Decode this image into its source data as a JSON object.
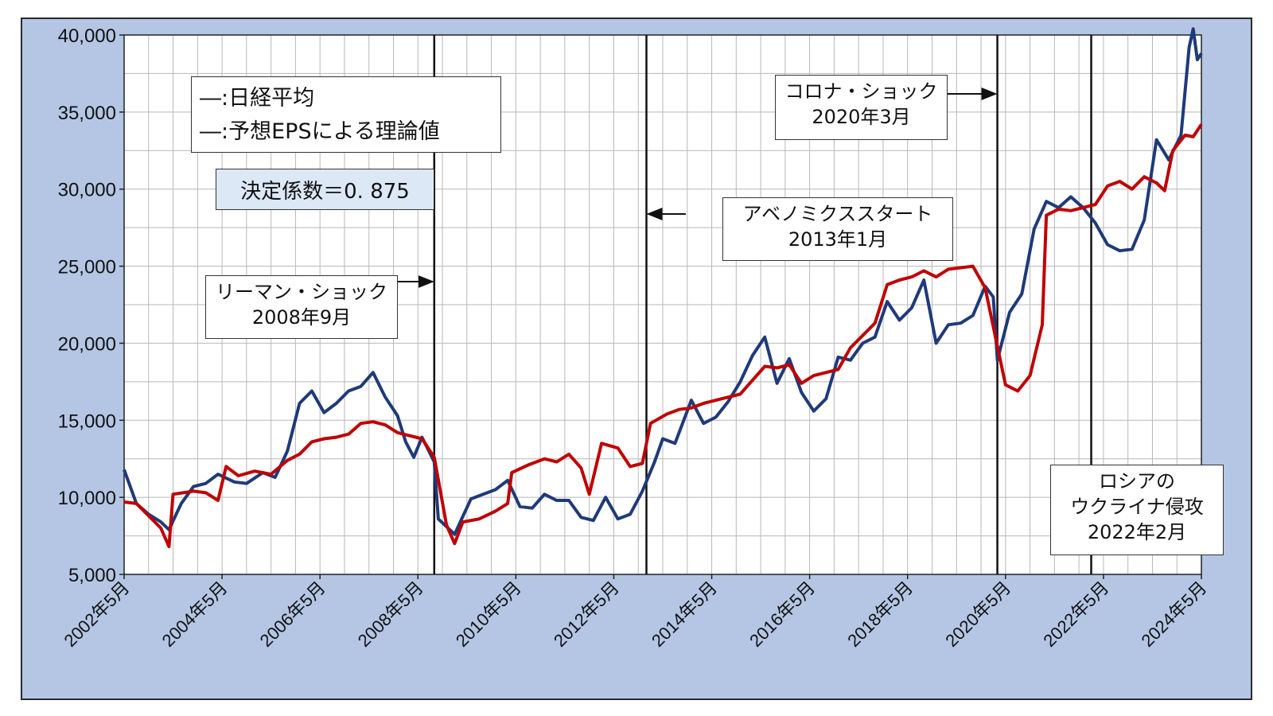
{
  "chart_data": {
    "type": "line",
    "title": "",
    "xlabel": "",
    "ylabel": "",
    "ylim": [
      5000,
      40000
    ],
    "y_ticks": [
      "5,000",
      "10,000",
      "15,000",
      "20,000",
      "25,000",
      "30,000",
      "35,000",
      "40,000"
    ],
    "x_ticks": [
      "2002年5月",
      "2004年5月",
      "2006年5月",
      "2008年5月",
      "2010年5月",
      "2012年5月",
      "2014年5月",
      "2016年5月",
      "2018年5月",
      "2020年5月",
      "2022年5月",
      "2024年5月"
    ],
    "xlim": [
      "2002-05",
      "2024-05"
    ],
    "grid": true,
    "legend": {
      "placement": "top-left",
      "entries": [
        {
          "label": "―:日経平均",
          "color": "#1f3a7a"
        },
        {
          "label": "―:予想EPSによる理論値",
          "color": "#c00000"
        }
      ]
    },
    "coefficient_label": "決定係数＝0. 875",
    "event_lines": [
      {
        "date": "2008-09",
        "label": "リーマン・ショック\n2008年9月"
      },
      {
        "date": "2013-01",
        "label": "アベノミクススタート\n2013年1月"
      },
      {
        "date": "2020-03",
        "label": "コロナ・ショック\n2020年3月"
      },
      {
        "date": "2022-02",
        "label": "ロシアの\nウクライナ侵攻\n2022年2月"
      }
    ],
    "series": [
      {
        "name": "日経平均",
        "color": "#1f3a7a",
        "points": [
          [
            "2002-05",
            11800
          ],
          [
            "2002-08",
            9600
          ],
          [
            "2002-11",
            8900
          ],
          [
            "2003-02",
            8400
          ],
          [
            "2003-04",
            7900
          ],
          [
            "2003-07",
            9600
          ],
          [
            "2003-10",
            10700
          ],
          [
            "2004-01",
            10900
          ],
          [
            "2004-04",
            11500
          ],
          [
            "2004-08",
            11000
          ],
          [
            "2004-11",
            10900
          ],
          [
            "2005-03",
            11600
          ],
          [
            "2005-06",
            11300
          ],
          [
            "2005-09",
            13000
          ],
          [
            "2005-12",
            16100
          ],
          [
            "2006-03",
            16900
          ],
          [
            "2006-06",
            15500
          ],
          [
            "2006-09",
            16100
          ],
          [
            "2006-12",
            16900
          ],
          [
            "2007-03",
            17200
          ],
          [
            "2007-06",
            18100
          ],
          [
            "2007-09",
            16500
          ],
          [
            "2007-12",
            15300
          ],
          [
            "2008-02",
            13600
          ],
          [
            "2008-04",
            12600
          ],
          [
            "2008-06",
            13900
          ],
          [
            "2008-09",
            12300
          ],
          [
            "2008-10",
            8600
          ],
          [
            "2009-02",
            7600
          ],
          [
            "2009-06",
            9900
          ],
          [
            "2009-09",
            10200
          ],
          [
            "2009-12",
            10500
          ],
          [
            "2010-03",
            11100
          ],
          [
            "2010-06",
            9400
          ],
          [
            "2010-09",
            9300
          ],
          [
            "2010-12",
            10200
          ],
          [
            "2011-03",
            9800
          ],
          [
            "2011-06",
            9800
          ],
          [
            "2011-09",
            8700
          ],
          [
            "2011-12",
            8500
          ],
          [
            "2012-03",
            10000
          ],
          [
            "2012-06",
            8600
          ],
          [
            "2012-09",
            8900
          ],
          [
            "2012-12",
            10400
          ],
          [
            "2013-03",
            12300
          ],
          [
            "2013-05",
            13800
          ],
          [
            "2013-08",
            13500
          ],
          [
            "2013-12",
            16300
          ],
          [
            "2014-03",
            14800
          ],
          [
            "2014-06",
            15200
          ],
          [
            "2014-09",
            16200
          ],
          [
            "2014-12",
            17500
          ],
          [
            "2015-03",
            19200
          ],
          [
            "2015-06",
            20400
          ],
          [
            "2015-09",
            17400
          ],
          [
            "2015-12",
            19000
          ],
          [
            "2016-03",
            16800
          ],
          [
            "2016-06",
            15600
          ],
          [
            "2016-09",
            16400
          ],
          [
            "2016-12",
            19100
          ],
          [
            "2017-03",
            18900
          ],
          [
            "2017-06",
            20000
          ],
          [
            "2017-09",
            20400
          ],
          [
            "2017-12",
            22700
          ],
          [
            "2018-03",
            21500
          ],
          [
            "2018-06",
            22300
          ],
          [
            "2018-09",
            24100
          ],
          [
            "2018-12",
            20000
          ],
          [
            "2019-03",
            21200
          ],
          [
            "2019-06",
            21300
          ],
          [
            "2019-09",
            21800
          ],
          [
            "2019-12",
            23700
          ],
          [
            "2020-02",
            23000
          ],
          [
            "2020-03",
            18900
          ],
          [
            "2020-06",
            22000
          ],
          [
            "2020-09",
            23200
          ],
          [
            "2020-12",
            27400
          ],
          [
            "2021-03",
            29200
          ],
          [
            "2021-06",
            28800
          ],
          [
            "2021-09",
            29500
          ],
          [
            "2021-12",
            28800
          ],
          [
            "2022-03",
            27800
          ],
          [
            "2022-06",
            26400
          ],
          [
            "2022-09",
            26000
          ],
          [
            "2022-12",
            26100
          ],
          [
            "2023-03",
            28000
          ],
          [
            "2023-06",
            33200
          ],
          [
            "2023-09",
            31900
          ],
          [
            "2023-12",
            33500
          ],
          [
            "2024-02",
            39200
          ],
          [
            "2024-03",
            40400
          ],
          [
            "2024-04",
            38400
          ],
          [
            "2024-05",
            38800
          ]
        ]
      },
      {
        "name": "予想EPSによる理論値",
        "color": "#c00000",
        "points": [
          [
            "2002-05",
            9700
          ],
          [
            "2002-08",
            9600
          ],
          [
            "2002-11",
            8800
          ],
          [
            "2003-02",
            8000
          ],
          [
            "2003-04",
            6800
          ],
          [
            "2003-05",
            10200
          ],
          [
            "2003-10",
            10400
          ],
          [
            "2004-01",
            10300
          ],
          [
            "2004-04",
            9800
          ],
          [
            "2004-06",
            12000
          ],
          [
            "2004-09",
            11400
          ],
          [
            "2005-01",
            11700
          ],
          [
            "2005-05",
            11500
          ],
          [
            "2005-09",
            12400
          ],
          [
            "2005-12",
            12800
          ],
          [
            "2006-03",
            13600
          ],
          [
            "2006-06",
            13800
          ],
          [
            "2006-09",
            13900
          ],
          [
            "2006-12",
            14100
          ],
          [
            "2007-03",
            14800
          ],
          [
            "2007-06",
            14900
          ],
          [
            "2007-09",
            14700
          ],
          [
            "2007-12",
            14200
          ],
          [
            "2008-03",
            14000
          ],
          [
            "2008-06",
            13800
          ],
          [
            "2008-09",
            12600
          ],
          [
            "2008-12",
            8200
          ],
          [
            "2009-02",
            7000
          ],
          [
            "2009-04",
            8400
          ],
          [
            "2009-08",
            8600
          ],
          [
            "2009-12",
            9100
          ],
          [
            "2010-03",
            9600
          ],
          [
            "2010-04",
            11600
          ],
          [
            "2010-08",
            12100
          ],
          [
            "2010-12",
            12500
          ],
          [
            "2011-03",
            12300
          ],
          [
            "2011-06",
            12800
          ],
          [
            "2011-09",
            11900
          ],
          [
            "2011-11",
            10200
          ],
          [
            "2012-02",
            13500
          ],
          [
            "2012-06",
            13200
          ],
          [
            "2012-09",
            12000
          ],
          [
            "2012-12",
            12200
          ],
          [
            "2013-02",
            14800
          ],
          [
            "2013-06",
            15400
          ],
          [
            "2013-09",
            15700
          ],
          [
            "2013-12",
            15800
          ],
          [
            "2014-03",
            16100
          ],
          [
            "2014-06",
            16300
          ],
          [
            "2014-12",
            16700
          ],
          [
            "2015-03",
            17600
          ],
          [
            "2015-06",
            18500
          ],
          [
            "2015-09",
            18400
          ],
          [
            "2015-12",
            18600
          ],
          [
            "2016-03",
            17400
          ],
          [
            "2016-06",
            17900
          ],
          [
            "2016-12",
            18300
          ],
          [
            "2017-03",
            19700
          ],
          [
            "2017-06",
            20500
          ],
          [
            "2017-09",
            21300
          ],
          [
            "2017-12",
            23800
          ],
          [
            "2018-03",
            24100
          ],
          [
            "2018-06",
            24300
          ],
          [
            "2018-09",
            24700
          ],
          [
            "2018-12",
            24300
          ],
          [
            "2019-03",
            24800
          ],
          [
            "2019-06",
            24900
          ],
          [
            "2019-09",
            25000
          ],
          [
            "2019-12",
            23600
          ],
          [
            "2020-03",
            19800
          ],
          [
            "2020-05",
            17300
          ],
          [
            "2020-08",
            16900
          ],
          [
            "2020-11",
            17900
          ],
          [
            "2021-02",
            21200
          ],
          [
            "2021-03",
            28300
          ],
          [
            "2021-06",
            28700
          ],
          [
            "2021-09",
            28600
          ],
          [
            "2021-12",
            28800
          ],
          [
            "2022-03",
            29000
          ],
          [
            "2022-06",
            30200
          ],
          [
            "2022-09",
            30500
          ],
          [
            "2022-12",
            30000
          ],
          [
            "2023-03",
            30800
          ],
          [
            "2023-06",
            30400
          ],
          [
            "2023-08",
            29900
          ],
          [
            "2023-10",
            32500
          ],
          [
            "2024-01",
            33500
          ],
          [
            "2024-03",
            33400
          ],
          [
            "2024-05",
            34200
          ]
        ]
      }
    ]
  }
}
